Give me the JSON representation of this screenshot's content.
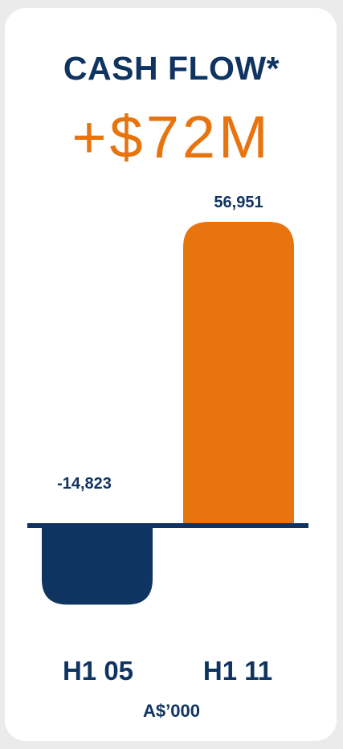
{
  "title": "CASH FLOW*",
  "headline": "+$72M",
  "unit_label": "A$’000",
  "colors": {
    "navy": "#0f3461",
    "orange": "#e8740f"
  },
  "chart_data": {
    "type": "bar",
    "categories": [
      "H1 05",
      "H1 11"
    ],
    "values": [
      -14823,
      56951
    ],
    "data_labels": [
      "-14,823",
      "56,951"
    ],
    "bar_colors": [
      "#0f3461",
      "#e8740f"
    ],
    "xlabel": "A$’000",
    "grid": false
  }
}
